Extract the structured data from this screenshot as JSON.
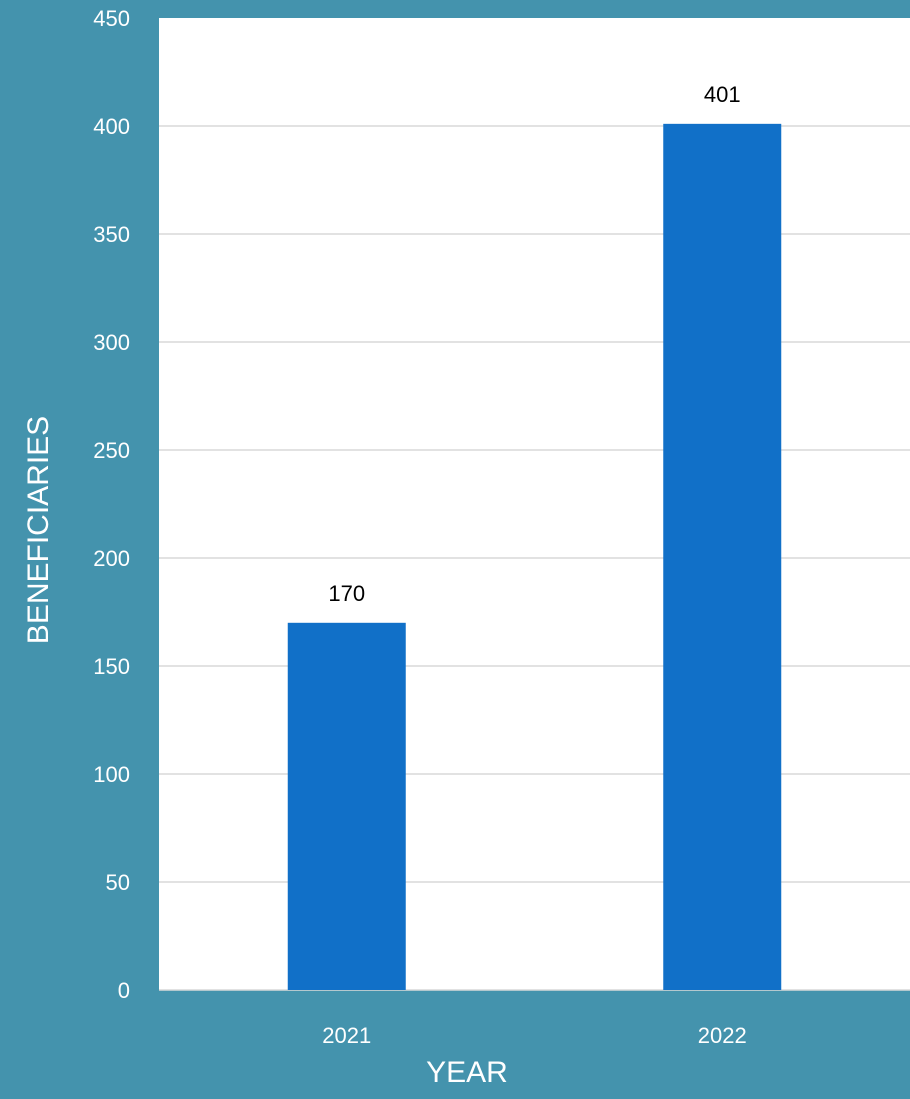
{
  "colors": {
    "background": "#4493ad",
    "plot_area": "#ffffff",
    "bar": "#1170c8",
    "gridline": "#d9d9d9",
    "axis_text": "#ffffff",
    "data_label_text": "#000000"
  },
  "chart_data": {
    "type": "bar",
    "categories": [
      "2021",
      "2022"
    ],
    "values": [
      170,
      401
    ],
    "data_labels": [
      "170",
      "401"
    ],
    "xlabel": "YEAR",
    "ylabel": "BENEFICIARIES",
    "ylim": [
      0,
      450
    ],
    "yticks": [
      0,
      50,
      100,
      150,
      200,
      250,
      300,
      350,
      400,
      450
    ],
    "grid": true,
    "legend": "none"
  }
}
